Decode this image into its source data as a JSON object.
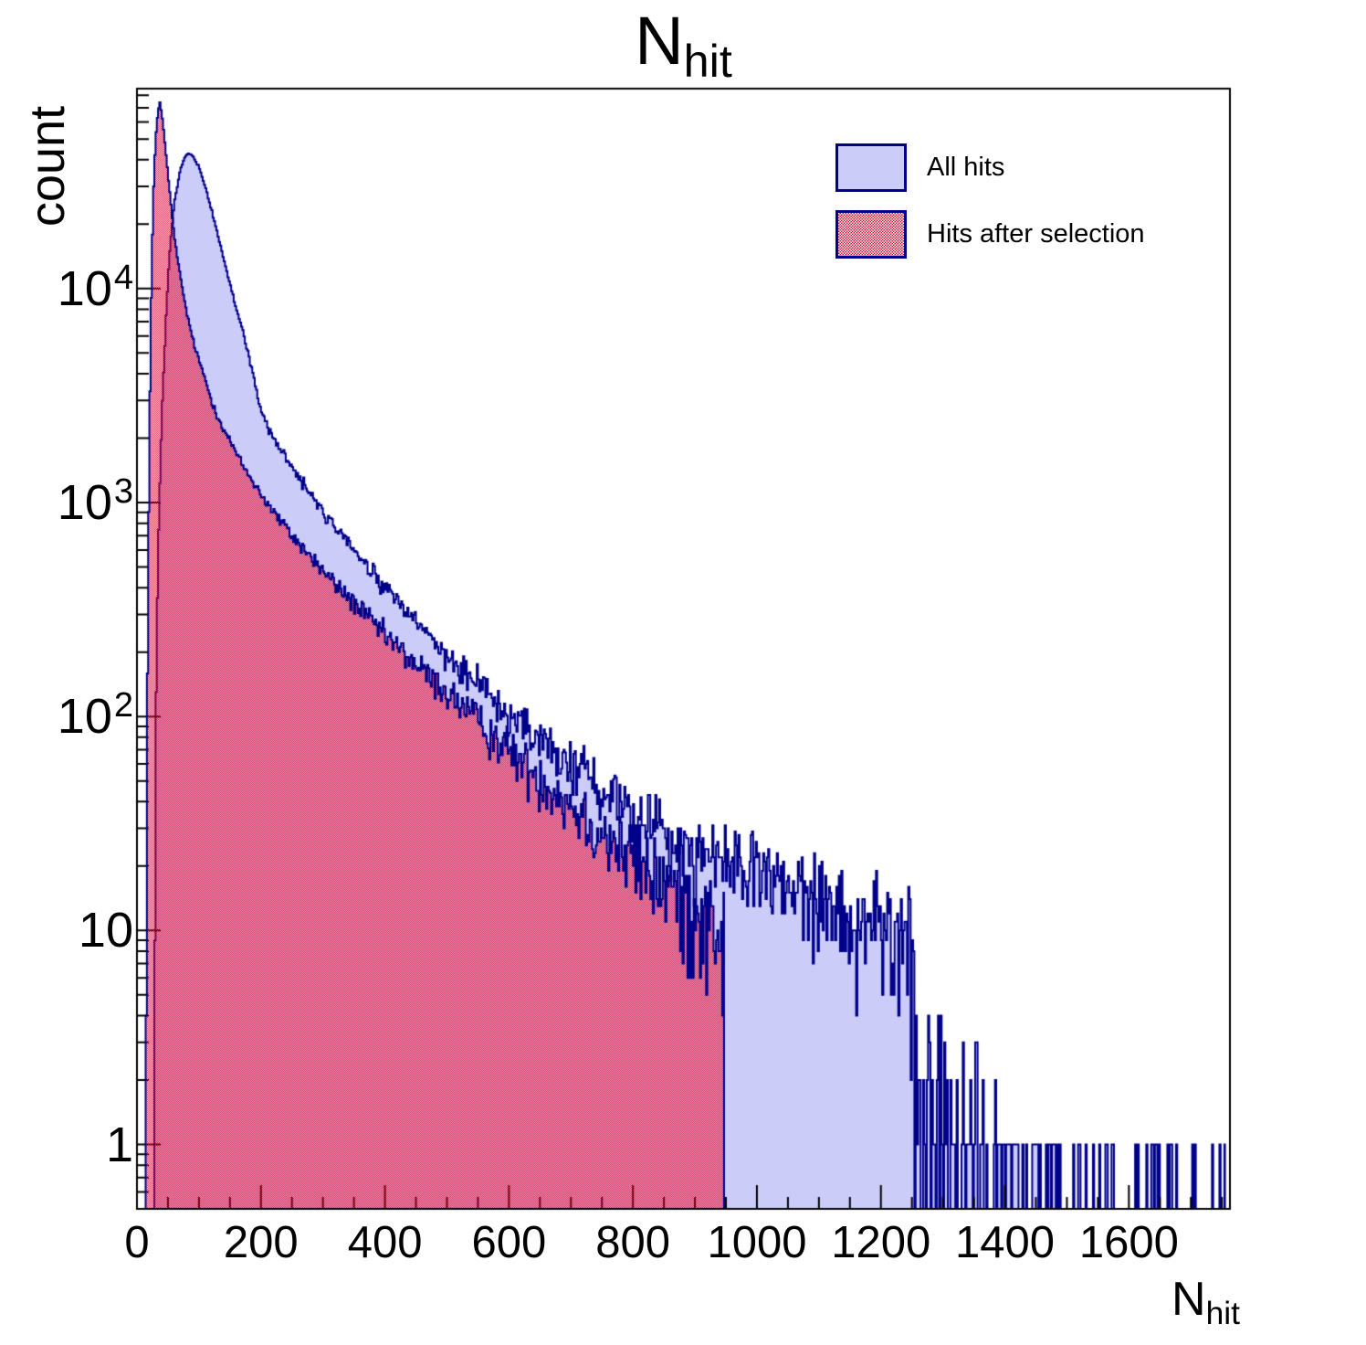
{
  "title": {
    "text": "N",
    "subscript": "hit"
  },
  "y_axis": {
    "title": "count",
    "scale": "log",
    "min": 0.5,
    "max": 86000,
    "tick_labels": [
      {
        "base": "1",
        "exp": "",
        "value": 1
      },
      {
        "base": "10",
        "exp": "",
        "value": 10
      },
      {
        "base": "10",
        "exp": "2",
        "value": 100
      },
      {
        "base": "10",
        "exp": "3",
        "value": 1000
      },
      {
        "base": "10",
        "exp": "4",
        "value": 10000
      }
    ]
  },
  "x_axis": {
    "title": "N",
    "title_subscript": "hit",
    "min": 0,
    "max": 1763,
    "minor_tick_step": 50,
    "major_tick_step": 200,
    "tick_labels": [
      0,
      200,
      400,
      600,
      800,
      1000,
      1200,
      1400,
      1600
    ]
  },
  "legend": {
    "items": [
      {
        "label": "All hits",
        "swatch": "blue-solid"
      },
      {
        "label": "Hits after selection",
        "swatch": "red-hatched"
      }
    ]
  },
  "colors": {
    "fill_blue": "#ccccf9",
    "outline_navy": "#00008b",
    "hatch_red": "#cc1133",
    "axis_black": "#000000",
    "background": "#ffffff"
  },
  "chart_data": {
    "type": "bar",
    "note": "Two overlaid 1-D histograms (ROOT style) on a log-y scale. Bin width ~2. Points are sampled anchors (N_hit, count) read from the plot; bins between anchors follow log-linear interpolation with Poisson-like fluctuation.",
    "bin_width": 2,
    "x_range": [
      0,
      1763
    ],
    "y_range": [
      0.5,
      86000
    ],
    "grid": false,
    "legend_position": "top-right",
    "xlabel": "N_hit",
    "ylabel": "count",
    "series": [
      {
        "name": "All hits",
        "style": "blue-solid",
        "points": [
          [
            28,
            2
          ],
          [
            30,
            80
          ],
          [
            34,
            600
          ],
          [
            40,
            2500
          ],
          [
            46,
            6500
          ],
          [
            52,
            14000
          ],
          [
            60,
            25000
          ],
          [
            70,
            36000
          ],
          [
            78,
            41500
          ],
          [
            84,
            43000
          ],
          [
            90,
            41500
          ],
          [
            100,
            37000
          ],
          [
            110,
            30000
          ],
          [
            120,
            23500
          ],
          [
            130,
            18000
          ],
          [
            140,
            13800
          ],
          [
            150,
            10500
          ],
          [
            162,
            7800
          ],
          [
            175,
            5600
          ],
          [
            188,
            3900
          ],
          [
            200,
            2700
          ],
          [
            212,
            2200
          ],
          [
            225,
            1900
          ],
          [
            238,
            1650
          ],
          [
            250,
            1450
          ],
          [
            275,
            1150
          ],
          [
            300,
            900
          ],
          [
            325,
            730
          ],
          [
            350,
            600
          ],
          [
            375,
            480
          ],
          [
            400,
            400
          ],
          [
            425,
            330
          ],
          [
            450,
            275
          ],
          [
            475,
            230
          ],
          [
            500,
            195
          ],
          [
            525,
            165
          ],
          [
            550,
            140
          ],
          [
            575,
            118
          ],
          [
            600,
            100
          ],
          [
            625,
            88
          ],
          [
            650,
            78
          ],
          [
            675,
            68
          ],
          [
            700,
            60
          ],
          [
            725,
            53
          ],
          [
            750,
            47
          ],
          [
            775,
            42
          ],
          [
            800,
            38
          ],
          [
            825,
            34
          ],
          [
            850,
            30
          ],
          [
            875,
            27
          ],
          [
            900,
            24
          ],
          [
            925,
            22
          ],
          [
            950,
            21
          ],
          [
            975,
            19
          ],
          [
            1000,
            18
          ],
          [
            1025,
            17
          ],
          [
            1050,
            16
          ],
          [
            1075,
            15
          ],
          [
            1100,
            14
          ],
          [
            1125,
            13
          ],
          [
            1150,
            12
          ],
          [
            1175,
            11.5
          ],
          [
            1200,
            11
          ],
          [
            1225,
            10
          ],
          [
            1250,
            9
          ],
          [
            1256,
            2.2
          ],
          [
            1280,
            1.6
          ],
          [
            1320,
            1.0
          ],
          [
            1360,
            0.7
          ],
          [
            1400,
            0.45
          ],
          [
            1440,
            0.3
          ],
          [
            1480,
            0.2
          ],
          [
            1520,
            0.12
          ],
          [
            1560,
            0.15
          ],
          [
            1600,
            0.12
          ],
          [
            1650,
            0.13
          ],
          [
            1700,
            0.12
          ],
          [
            1755,
            0.2
          ]
        ]
      },
      {
        "name": "Hits after selection",
        "style": "red-hatched",
        "points": [
          [
            14,
            2
          ],
          [
            16,
            60
          ],
          [
            18,
            400
          ],
          [
            20,
            2000
          ],
          [
            23,
            9000
          ],
          [
            26,
            25000
          ],
          [
            30,
            50000
          ],
          [
            34,
            68000
          ],
          [
            37,
            74000
          ],
          [
            40,
            66000
          ],
          [
            43,
            55000
          ],
          [
            47,
            42000
          ],
          [
            52,
            30000
          ],
          [
            58,
            20000
          ],
          [
            65,
            14000
          ],
          [
            72,
            10500
          ],
          [
            80,
            7800
          ],
          [
            90,
            5800
          ],
          [
            100,
            4600
          ],
          [
            110,
            3800
          ],
          [
            120,
            3000
          ],
          [
            130,
            2550
          ],
          [
            140,
            2200
          ],
          [
            150,
            1950
          ],
          [
            160,
            1700
          ],
          [
            170,
            1500
          ],
          [
            180,
            1350
          ],
          [
            190,
            1220
          ],
          [
            200,
            1100
          ],
          [
            215,
            950
          ],
          [
            230,
            830
          ],
          [
            245,
            730
          ],
          [
            260,
            650
          ],
          [
            280,
            560
          ],
          [
            300,
            480
          ],
          [
            325,
            400
          ],
          [
            350,
            340
          ],
          [
            375,
            285
          ],
          [
            400,
            240
          ],
          [
            425,
            205
          ],
          [
            450,
            175
          ],
          [
            475,
            150
          ],
          [
            500,
            130
          ],
          [
            525,
            112
          ],
          [
            550,
            95
          ],
          [
            575,
            82
          ],
          [
            600,
            70
          ],
          [
            625,
            60
          ],
          [
            650,
            52
          ],
          [
            675,
            45
          ],
          [
            700,
            39
          ],
          [
            725,
            34
          ],
          [
            750,
            29
          ],
          [
            775,
            25
          ],
          [
            800,
            22
          ],
          [
            825,
            19
          ],
          [
            850,
            17
          ],
          [
            875,
            15
          ],
          [
            900,
            13
          ],
          [
            915,
            12
          ],
          [
            930,
            11
          ],
          [
            947,
            9
          ]
        ]
      }
    ]
  }
}
